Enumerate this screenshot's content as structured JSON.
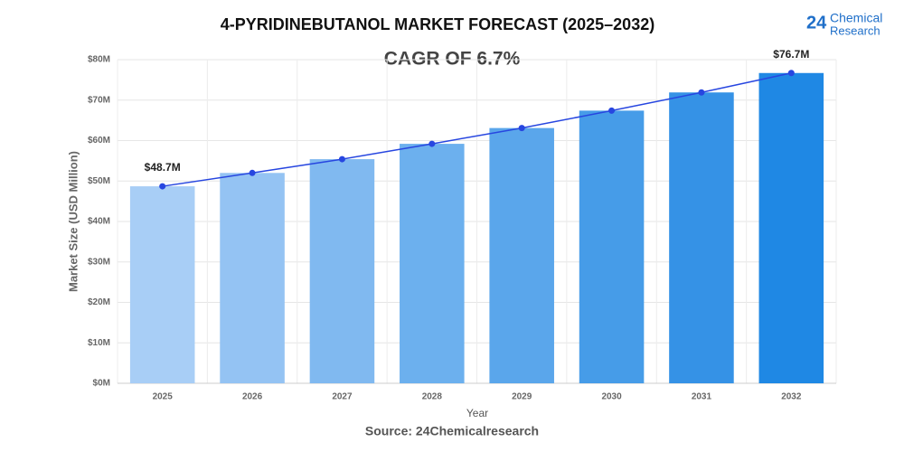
{
  "chart_data": {
    "type": "bar_line",
    "title": "4-PYRIDINEBUTANOL MARKET FORECAST (2025–2032)",
    "subtitle": "CAGR OF 6.7%",
    "x_label": "Year",
    "y_label": "Market Size (USD Million)",
    "source": "Source: 24Chemicalresearch",
    "logo": {
      "number": "24",
      "line1": "Chemical",
      "line2": "Research"
    },
    "categories": [
      "2025",
      "2026",
      "2027",
      "2028",
      "2029",
      "2030",
      "2031",
      "2032"
    ],
    "values": [
      48.7,
      52.0,
      55.4,
      59.2,
      63.1,
      67.4,
      71.9,
      76.7
    ],
    "value_labels": [
      "$48.7M",
      null,
      null,
      null,
      null,
      null,
      null,
      "$76.7M"
    ],
    "colors": [
      "#a8cef6",
      "#94c3f3",
      "#80b9f0",
      "#6cb0ee",
      "#5aa6eb",
      "#469ce8",
      "#3592e6",
      "#1f88e4"
    ],
    "line_color": "#2746e0",
    "ylim": [
      0,
      80
    ],
    "yticks": [
      {
        "value": 0,
        "label": "$0M"
      },
      {
        "value": 10,
        "label": "$10M"
      },
      {
        "value": 20,
        "label": "$20M"
      },
      {
        "value": 30,
        "label": "$30M"
      },
      {
        "value": 40,
        "label": "$40M"
      },
      {
        "value": 50,
        "label": "$50M"
      },
      {
        "value": 60,
        "label": "$60M"
      },
      {
        "value": 70,
        "label": "$70M"
      },
      {
        "value": 80,
        "label": "$80M"
      }
    ],
    "grid": true
  }
}
